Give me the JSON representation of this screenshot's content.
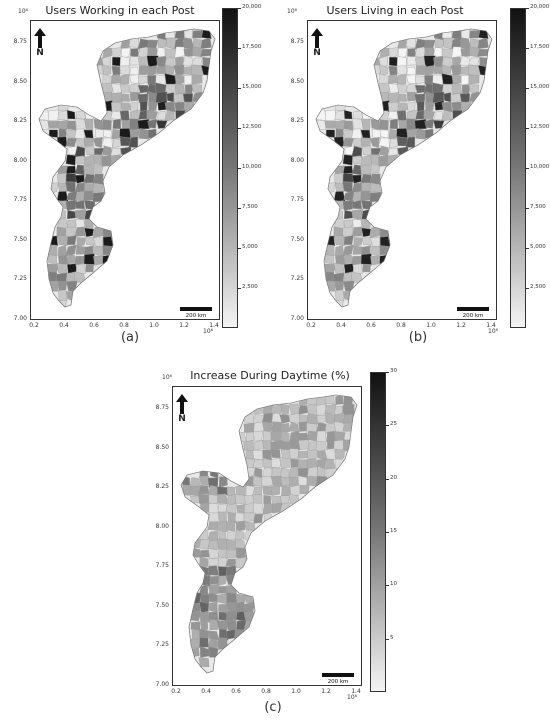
{
  "panels": [
    {
      "id": "a",
      "title": "Users Working in each Post",
      "caption": "(a)",
      "sci_y": "10⁶",
      "sci_x": "10⁶",
      "yticks": [
        "8.75",
        "8.50",
        "8.25",
        "8.00",
        "7.75",
        "7.50",
        "7.25",
        "7.00"
      ],
      "xticks": [
        "0.2",
        "0.4",
        "0.6",
        "0.8",
        "1.0",
        "1.2",
        "1.4"
      ],
      "colorbar_ticks": [
        "20,000",
        "17,500",
        "15,000",
        "12,500",
        "10,000",
        "7,500",
        "5,000",
        "2,500"
      ],
      "colorbar_range": [
        0,
        20000
      ],
      "north_label": "N",
      "scale_label": "200 km",
      "shade_bias": 0.0
    },
    {
      "id": "b",
      "title": "Users Living in each Post",
      "caption": "(b)",
      "sci_y": "10⁶",
      "sci_x": "10⁶",
      "yticks": [
        "8.75",
        "8.50",
        "8.25",
        "8.00",
        "7.75",
        "7.50",
        "7.25",
        "7.00"
      ],
      "xticks": [
        "0.2",
        "0.4",
        "0.6",
        "0.8",
        "1.0",
        "1.2",
        "1.4"
      ],
      "colorbar_ticks": [
        "20,000",
        "17,500",
        "15,000",
        "12,500",
        "10,000",
        "7,500",
        "5,000",
        "2,500"
      ],
      "colorbar_range": [
        0,
        20000
      ],
      "north_label": "N",
      "scale_label": "200 km",
      "shade_bias": -0.03
    },
    {
      "id": "c",
      "title": "Increase During Daytime (%)",
      "caption": "(c)",
      "sci_y": "10⁶",
      "sci_x": "10⁶",
      "yticks": [
        "8.75",
        "8.50",
        "8.25",
        "8.00",
        "7.75",
        "7.50",
        "7.25",
        "7.00"
      ],
      "xticks": [
        "0.2",
        "0.4",
        "0.6",
        "0.8",
        "1.0",
        "1.2",
        "1.4"
      ],
      "colorbar_ticks": [
        "30",
        "25",
        "20",
        "15",
        "10",
        "5"
      ],
      "colorbar_range": [
        0,
        30
      ],
      "north_label": "N",
      "scale_label": "200 km",
      "shade_bias": 0.0
    }
  ]
}
